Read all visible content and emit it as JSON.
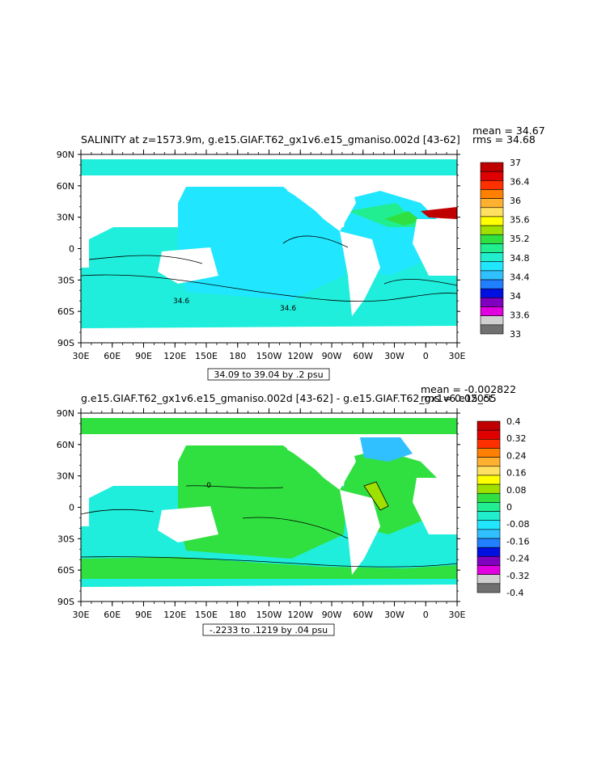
{
  "panels": [
    {
      "title": "SALINITY at z=1573.9m, g.e15.GIAF.T62_gx1v6.e15_gmaniso.002d [43-62]",
      "stats_mean": "mean = 34.67",
      "stats_rms": "rms = 34.68",
      "range_label": "34.09 to 39.04 by .2 psu",
      "lat_labels": [
        "90N",
        "60N",
        "30N",
        "0",
        "30S",
        "60S",
        "90S"
      ],
      "lon_labels": [
        "30E",
        "60E",
        "90E",
        "120E",
        "150E",
        "180",
        "150W",
        "120W",
        "90W",
        "60W",
        "30W",
        "0",
        "30E"
      ],
      "contour_labels": [
        "34.6",
        "34.6"
      ],
      "colorbar": {
        "labels": [
          "37",
          "36.4",
          "36",
          "35.6",
          "35.2",
          "34.8",
          "34.4",
          "34",
          "33.6",
          "33"
        ],
        "colors": [
          "#c00000",
          "#e00000",
          "#ff3000",
          "#ff8000",
          "#ffb030",
          "#ffe060",
          "#ffff00",
          "#a0e000",
          "#30e040",
          "#20ee90",
          "#20eecc",
          "#20e6ff",
          "#30c0ff",
          "#2080ff",
          "#0010e0",
          "#8000c0",
          "#e000e0",
          "#d0d0d0",
          "#707070"
        ]
      }
    },
    {
      "title": "g.e15.GIAF.T62_gx1v6.e15_gmaniso.002d [43-62] - g.e15.GIAF.T62_gx1v6.e15_ct",
      "stats_mean": "mean = -0.002822",
      "stats_rms": "rms = 0.02055",
      "range_label": "-.2233 to .1219 by .04 psu",
      "lat_labels": [
        "90N",
        "60N",
        "30N",
        "0",
        "30S",
        "60S",
        "90S"
      ],
      "lon_labels": [
        "30E",
        "60E",
        "90E",
        "120E",
        "150E",
        "180",
        "150W",
        "120W",
        "90W",
        "60W",
        "30W",
        "0",
        "30E"
      ],
      "contour_labels": [
        "-0"
      ],
      "colorbar": {
        "labels": [
          "0.4",
          "0.32",
          "0.24",
          "0.16",
          "0.08",
          "0",
          "-0.08",
          "-0.16",
          "-0.24",
          "-0.32",
          "-0.4"
        ],
        "colors": [
          "#c00000",
          "#e00000",
          "#ff3000",
          "#ff8000",
          "#ffb030",
          "#ffe060",
          "#ffff00",
          "#a0e000",
          "#30e040",
          "#20ee90",
          "#20eecc",
          "#20e6ff",
          "#30c0ff",
          "#2080ff",
          "#0010e0",
          "#8000c0",
          "#e000e0",
          "#d0d0d0",
          "#707070"
        ]
      }
    }
  ],
  "map_colors": {
    "ocean_main": "#20e6ff",
    "ocean_south": "#20eedc",
    "atlantic_top": "#20ee90",
    "diff_green": "#30e040",
    "diff_cyan": "#20eedc",
    "diff_blue": "#30c0ff",
    "diff_lime": "#a0e000",
    "red_spot": "#c00000",
    "land": "#ffffff"
  }
}
